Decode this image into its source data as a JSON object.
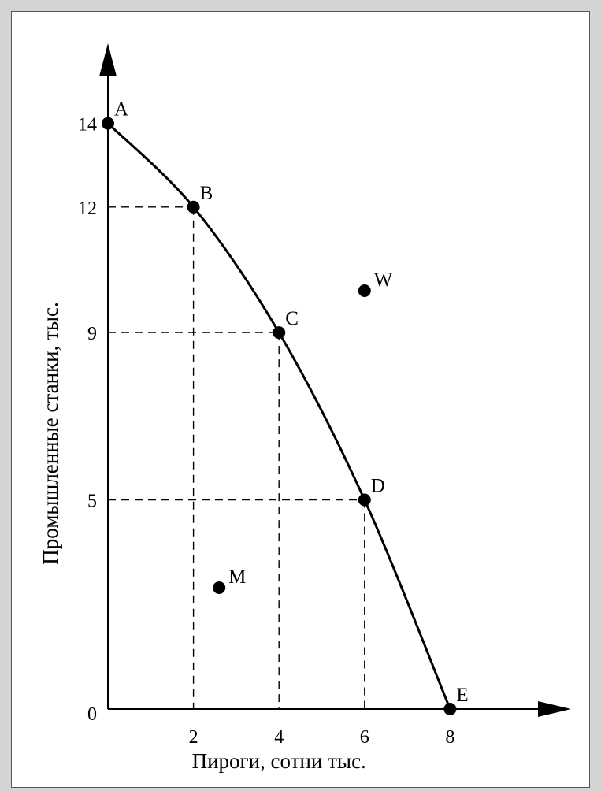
{
  "colors": {
    "background": "#d4d4d4",
    "panel": "#ffffff",
    "ink": "#000000"
  },
  "chart_data": {
    "type": "line",
    "title": "",
    "xlabel": "Пироги, сотни тыс.",
    "ylabel": "Промышленные станки, тыс.",
    "origin_label": "0",
    "xlim": [
      0,
      9.3
    ],
    "ylim": [
      0,
      15.6
    ],
    "x_ticks": [
      2,
      4,
      6,
      8
    ],
    "x_tick_labels": [
      "2",
      "4",
      "6",
      "8"
    ],
    "y_ticks": [
      5,
      9,
      12,
      14
    ],
    "y_tick_labels": [
      "5",
      "9",
      "12",
      "14"
    ],
    "grid": false,
    "series": [
      {
        "values": [
          {
            "label": "A",
            "x": 0,
            "y": 14
          },
          {
            "label": "B",
            "x": 2,
            "y": 12
          },
          {
            "label": "C",
            "x": 4,
            "y": 9
          },
          {
            "label": "D",
            "x": 6,
            "y": 5
          },
          {
            "label": "E",
            "x": 8,
            "y": 0
          }
        ]
      }
    ],
    "dashed_guides": [
      {
        "x": 2,
        "y": 12
      },
      {
        "x": 4,
        "y": 9
      },
      {
        "x": 6,
        "y": 5
      }
    ],
    "extra_points": [
      {
        "label": "W",
        "x": 6,
        "y": 10
      },
      {
        "label": "M",
        "x": 2.6,
        "y": 2.9
      }
    ]
  }
}
